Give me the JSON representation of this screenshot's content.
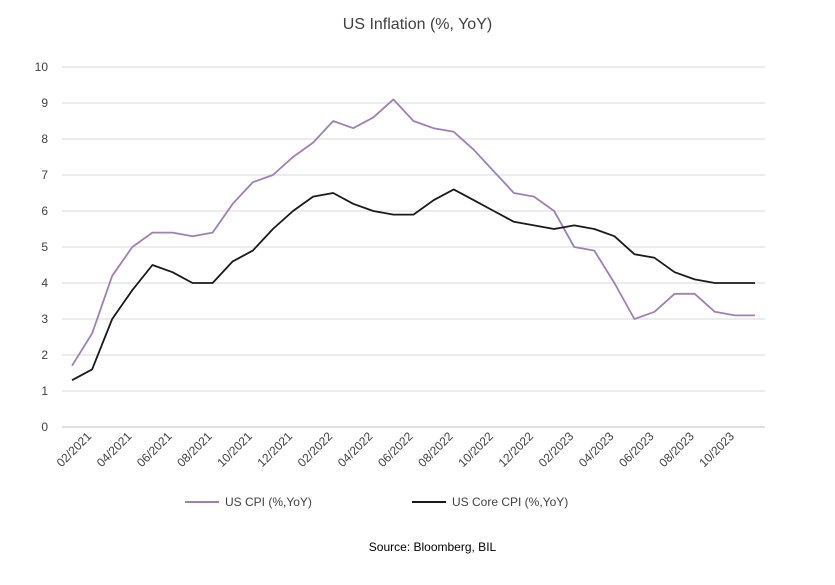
{
  "chart_data": {
    "type": "line",
    "title": "US Inflation (%, YoY)",
    "source": "Source: Bloomberg, BIL",
    "ylim": [
      0,
      10
    ],
    "yticks": [
      "0",
      "1",
      "2",
      "3",
      "4",
      "5",
      "6",
      "7",
      "8",
      "9",
      "10"
    ],
    "xticks": [
      "02/2021",
      "04/2021",
      "06/2021",
      "08/2021",
      "10/2021",
      "12/2021",
      "02/2022",
      "04/2022",
      "06/2022",
      "08/2022",
      "10/2022",
      "12/2022",
      "02/2023",
      "04/2023",
      "06/2023",
      "08/2023",
      "10/2023"
    ],
    "grid": true,
    "legend_position": "bottom",
    "x": [
      "01/2021",
      "02/2021",
      "03/2021",
      "04/2021",
      "05/2021",
      "06/2021",
      "07/2021",
      "08/2021",
      "09/2021",
      "10/2021",
      "11/2021",
      "12/2021",
      "01/2022",
      "02/2022",
      "03/2022",
      "04/2022",
      "05/2022",
      "06/2022",
      "07/2022",
      "08/2022",
      "09/2022",
      "10/2022",
      "11/2022",
      "12/2022",
      "01/2023",
      "02/2023",
      "03/2023",
      "04/2023",
      "05/2023",
      "06/2023",
      "07/2023",
      "08/2023",
      "09/2023",
      "10/2023",
      "11/2023"
    ],
    "series": [
      {
        "name": "US CPI (%,YoY)",
        "color": "#a17fb5",
        "values": [
          1.7,
          2.6,
          4.2,
          5.0,
          5.4,
          5.4,
          5.3,
          5.4,
          6.2,
          6.8,
          7.0,
          7.5,
          7.9,
          8.5,
          8.3,
          8.6,
          9.1,
          8.5,
          8.3,
          8.2,
          7.7,
          7.1,
          6.5,
          6.4,
          6.0,
          5.0,
          4.9,
          4.0,
          3.0,
          3.2,
          3.7,
          3.7,
          3.2,
          3.1,
          3.1
        ]
      },
      {
        "name": "US Core CPI (%,YoY)",
        "color": "#1a1a1a",
        "values": [
          1.3,
          1.6,
          3.0,
          3.8,
          4.5,
          4.3,
          4.0,
          4.0,
          4.6,
          4.9,
          5.5,
          6.0,
          6.4,
          6.5,
          6.2,
          6.0,
          5.9,
          5.9,
          6.3,
          6.6,
          6.3,
          6.0,
          5.7,
          5.6,
          5.5,
          5.6,
          5.5,
          5.3,
          4.8,
          4.7,
          4.3,
          4.1,
          4.0,
          4.0,
          4.0
        ]
      }
    ]
  }
}
